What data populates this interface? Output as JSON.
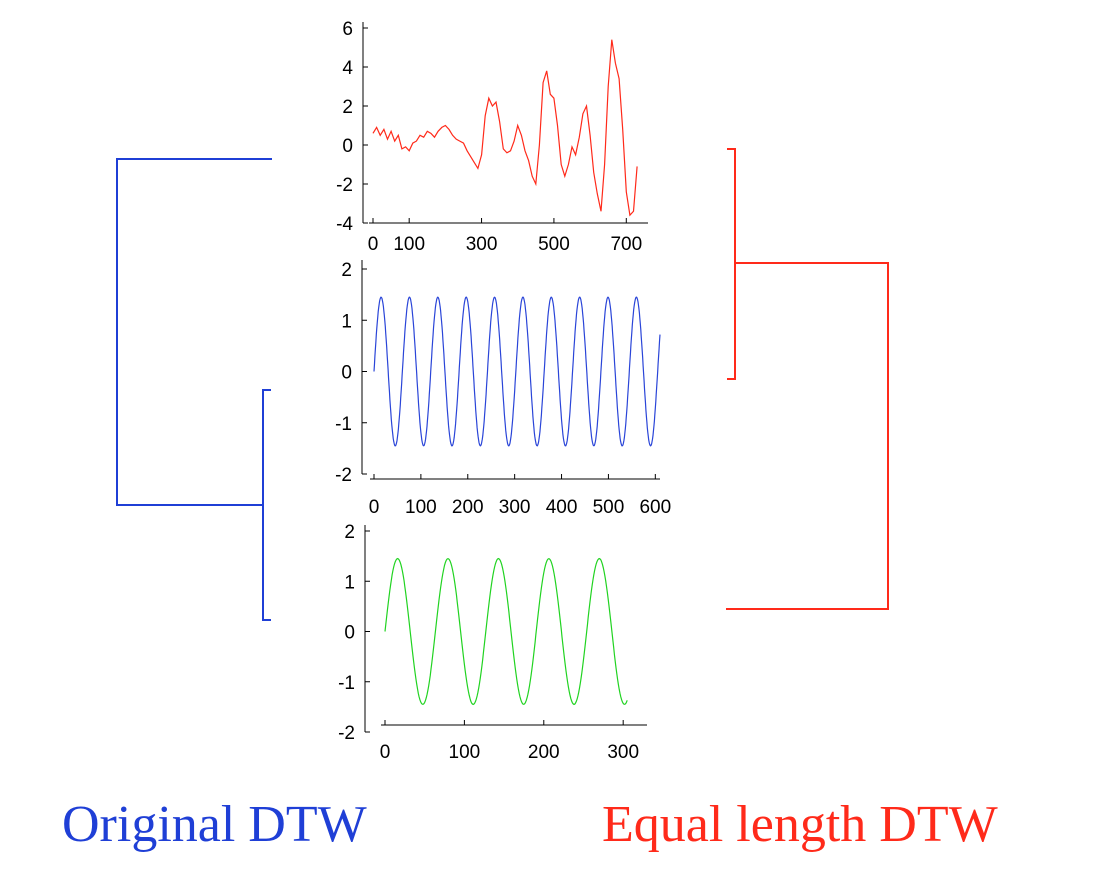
{
  "captions": {
    "left": "Original DTW",
    "right": "Equal length DTW"
  },
  "colors": {
    "left_dendrogram": "#1f3fd6",
    "right_dendrogram": "#ff2a1a"
  },
  "chart_data": [
    {
      "type": "line",
      "name": "",
      "color": "#ff2a1a",
      "xlim": [
        0,
        770
      ],
      "ylim": [
        -4,
        6
      ],
      "xticks": [
        0,
        100,
        300,
        500,
        700
      ],
      "xtick_labels": [
        "0",
        "100",
        "300",
        "500",
        "700"
      ],
      "yticks": [
        -4,
        -2,
        0,
        2,
        4,
        6
      ],
      "ytick_labels": [
        "-4",
        "-2",
        "0",
        "2",
        "4",
        "6"
      ],
      "points": [
        [
          0,
          0.6
        ],
        [
          10,
          0.9
        ],
        [
          20,
          0.5
        ],
        [
          30,
          0.8
        ],
        [
          40,
          0.3
        ],
        [
          50,
          0.7
        ],
        [
          60,
          0.2
        ],
        [
          70,
          0.5
        ],
        [
          80,
          -0.2
        ],
        [
          90,
          -0.1
        ],
        [
          100,
          -0.3
        ],
        [
          110,
          0.1
        ],
        [
          120,
          0.2
        ],
        [
          130,
          0.5
        ],
        [
          140,
          0.4
        ],
        [
          150,
          0.7
        ],
        [
          160,
          0.6
        ],
        [
          170,
          0.4
        ],
        [
          180,
          0.7
        ],
        [
          190,
          0.9
        ],
        [
          200,
          1.0
        ],
        [
          210,
          0.8
        ],
        [
          220,
          0.5
        ],
        [
          230,
          0.3
        ],
        [
          240,
          0.2
        ],
        [
          250,
          0.1
        ],
        [
          260,
          -0.3
        ],
        [
          270,
          -0.6
        ],
        [
          280,
          -0.9
        ],
        [
          290,
          -1.2
        ],
        [
          300,
          -0.5
        ],
        [
          310,
          1.5
        ],
        [
          320,
          2.4
        ],
        [
          330,
          2.0
        ],
        [
          340,
          2.2
        ],
        [
          350,
          1.2
        ],
        [
          360,
          -0.2
        ],
        [
          370,
          -0.4
        ],
        [
          380,
          -0.3
        ],
        [
          390,
          0.2
        ],
        [
          400,
          1.0
        ],
        [
          410,
          0.5
        ],
        [
          420,
          -0.3
        ],
        [
          430,
          -0.8
        ],
        [
          440,
          -1.6
        ],
        [
          450,
          -2.0
        ],
        [
          460,
          0.0
        ],
        [
          470,
          3.2
        ],
        [
          480,
          3.8
        ],
        [
          490,
          2.6
        ],
        [
          500,
          2.4
        ],
        [
          510,
          1.0
        ],
        [
          520,
          -1.0
        ],
        [
          530,
          -1.6
        ],
        [
          540,
          -1.0
        ],
        [
          550,
          -0.1
        ],
        [
          560,
          -0.5
        ],
        [
          570,
          0.4
        ],
        [
          580,
          1.6
        ],
        [
          590,
          2.0
        ],
        [
          600,
          0.5
        ],
        [
          610,
          -1.4
        ],
        [
          620,
          -2.5
        ],
        [
          630,
          -3.4
        ],
        [
          640,
          -1.0
        ],
        [
          650,
          3.0
        ],
        [
          660,
          5.4
        ],
        [
          670,
          4.2
        ],
        [
          680,
          3.4
        ],
        [
          690,
          0.8
        ],
        [
          700,
          -2.4
        ],
        [
          710,
          -3.6
        ],
        [
          720,
          -3.4
        ],
        [
          730,
          -1.1
        ]
      ]
    },
    {
      "type": "line",
      "name": "",
      "color": "#2a45d8",
      "xlim": [
        0,
        610
      ],
      "ylim": [
        -2,
        2
      ],
      "xticks": [
        0,
        100,
        200,
        300,
        400,
        500,
        600
      ],
      "xtick_labels": [
        "0",
        "100",
        "200",
        "300",
        "400",
        "500",
        "600"
      ],
      "yticks": [
        -2,
        -1,
        0,
        1,
        2
      ],
      "ytick_labels": [
        "-2",
        "-1",
        "0",
        "1",
        "2"
      ],
      "function": {
        "kind": "sine",
        "amplitude": 1.45,
        "period": 60.5,
        "x_start": 0,
        "x_end": 610
      }
    },
    {
      "type": "line",
      "name": "",
      "color": "#21d321",
      "xlim": [
        0,
        330
      ],
      "ylim": [
        -2,
        2
      ],
      "xticks": [
        0,
        100,
        200,
        300
      ],
      "xtick_labels": [
        "0",
        "100",
        "200",
        "300"
      ],
      "yticks": [
        -2,
        -1,
        0,
        1,
        2
      ],
      "ytick_labels": [
        "-2",
        "-1",
        "0",
        "1",
        "2"
      ],
      "function": {
        "kind": "sine",
        "amplitude": 1.45,
        "period": 63.5,
        "x_start": 0,
        "x_end": 305
      }
    }
  ]
}
